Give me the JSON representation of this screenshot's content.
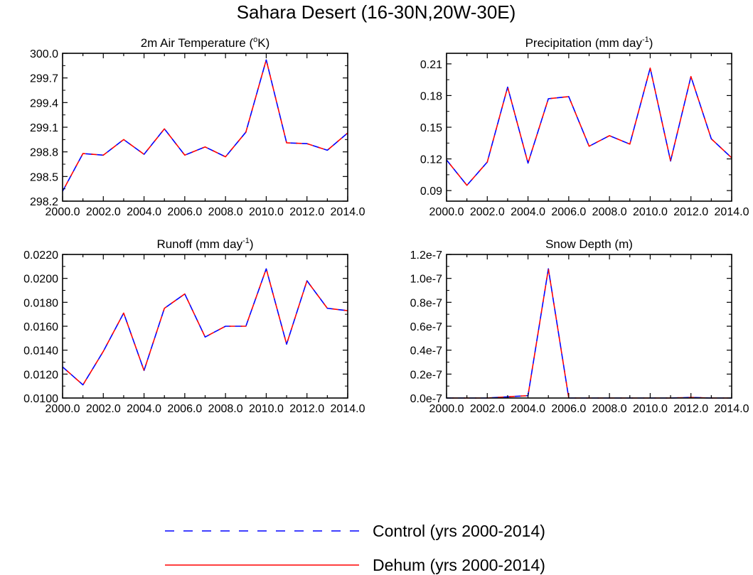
{
  "figure_title": "Sahara Desert (16-30N,20W-30E)",
  "colors": {
    "control": "#0000ff",
    "dehum": "#ff0000",
    "axis": "#000000"
  },
  "legend": [
    {
      "label": "Control (yrs 2000-2014)",
      "style": "dashed",
      "color_key": "control"
    },
    {
      "label": "Dehum (yrs 2000-2014)",
      "style": "solid",
      "color_key": "dehum"
    }
  ],
  "chart_data": [
    {
      "type": "line",
      "title": "2m Air Temperature (",
      "title_sup": "o",
      "title_after": "K)",
      "x": [
        2000,
        2001,
        2002,
        2003,
        2004,
        2005,
        2006,
        2007,
        2008,
        2009,
        2010,
        2011,
        2012,
        2013,
        2014
      ],
      "xlim": [
        2000,
        2014
      ],
      "xticks": [
        2000,
        2002,
        2004,
        2006,
        2008,
        2010,
        2012,
        2014
      ],
      "xtick_labels": [
        "2000.0",
        "2002.0",
        "2004.0",
        "2006.0",
        "2008.0",
        "2010.0",
        "2012.0",
        "2014.0"
      ],
      "ylim": [
        298.2,
        300.0
      ],
      "yticks": [
        298.2,
        298.5,
        298.8,
        299.1,
        299.4,
        299.7,
        300.0
      ],
      "ytick_labels": [
        "298.2",
        "298.5",
        "298.8",
        "299.1",
        "299.4",
        "299.7",
        "300.0"
      ],
      "series": [
        {
          "name": "Control",
          "values": [
            298.32,
            298.78,
            298.76,
            298.95,
            298.77,
            299.08,
            298.76,
            298.86,
            298.74,
            299.04,
            299.92,
            298.91,
            298.9,
            298.82,
            299.03
          ]
        },
        {
          "name": "Dehum",
          "values": [
            298.32,
            298.78,
            298.76,
            298.95,
            298.77,
            299.08,
            298.76,
            298.86,
            298.74,
            299.04,
            299.92,
            298.91,
            298.9,
            298.82,
            299.03
          ]
        }
      ]
    },
    {
      "type": "line",
      "title": "Precipitation (mm day",
      "title_sup": "-1",
      "title_after": ")",
      "x": [
        2000,
        2001,
        2002,
        2003,
        2004,
        2005,
        2006,
        2007,
        2008,
        2009,
        2010,
        2011,
        2012,
        2013,
        2014
      ],
      "xlim": [
        2000,
        2014
      ],
      "xticks": [
        2000,
        2002,
        2004,
        2006,
        2008,
        2010,
        2012,
        2014
      ],
      "xtick_labels": [
        "2000.0",
        "2002.0",
        "2004.0",
        "2006.0",
        "2008.0",
        "2010.0",
        "2012.0",
        "2014.0"
      ],
      "ylim": [
        0.08,
        0.22
      ],
      "yticks": [
        0.09,
        0.12,
        0.15,
        0.18,
        0.21
      ],
      "ytick_labels": [
        "0.09",
        "0.12",
        "0.15",
        "0.18",
        "0.21"
      ],
      "series": [
        {
          "name": "Control",
          "values": [
            0.119,
            0.095,
            0.117,
            0.188,
            0.116,
            0.177,
            0.179,
            0.132,
            0.142,
            0.134,
            0.206,
            0.118,
            0.198,
            0.139,
            0.121
          ]
        },
        {
          "name": "Dehum",
          "values": [
            0.119,
            0.095,
            0.117,
            0.188,
            0.116,
            0.177,
            0.179,
            0.132,
            0.142,
            0.134,
            0.206,
            0.118,
            0.198,
            0.139,
            0.121
          ]
        }
      ]
    },
    {
      "type": "line",
      "title": "Runoff (mm day",
      "title_sup": "-1",
      "title_after": ")",
      "x": [
        2000,
        2001,
        2002,
        2003,
        2004,
        2005,
        2006,
        2007,
        2008,
        2009,
        2010,
        2011,
        2012,
        2013,
        2014
      ],
      "xlim": [
        2000,
        2014
      ],
      "xticks": [
        2000,
        2002,
        2004,
        2006,
        2008,
        2010,
        2012,
        2014
      ],
      "xtick_labels": [
        "2000.0",
        "2002.0",
        "2004.0",
        "2006.0",
        "2008.0",
        "2010.0",
        "2012.0",
        "2014.0"
      ],
      "ylim": [
        0.01,
        0.022
      ],
      "yticks": [
        0.01,
        0.012,
        0.014,
        0.016,
        0.018,
        0.02,
        0.022
      ],
      "ytick_labels": [
        "0.0100",
        "0.0120",
        "0.0140",
        "0.0160",
        "0.0180",
        "0.0200",
        "0.0220"
      ],
      "series": [
        {
          "name": "Control",
          "values": [
            0.0126,
            0.0111,
            0.0139,
            0.0171,
            0.0123,
            0.0175,
            0.0187,
            0.0151,
            0.016,
            0.016,
            0.0208,
            0.0145,
            0.0198,
            0.0175,
            0.0173
          ]
        },
        {
          "name": "Dehum",
          "values": [
            0.0126,
            0.0111,
            0.0139,
            0.0171,
            0.0123,
            0.0175,
            0.0187,
            0.0151,
            0.016,
            0.016,
            0.0208,
            0.0145,
            0.0198,
            0.0175,
            0.0173
          ]
        }
      ]
    },
    {
      "type": "line",
      "title": "Snow Depth (m)",
      "title_sup": "",
      "title_after": "",
      "x": [
        2000,
        2001,
        2002,
        2003,
        2004,
        2005,
        2006,
        2007,
        2008,
        2009,
        2010,
        2011,
        2012,
        2013,
        2014
      ],
      "xlim": [
        2000,
        2014
      ],
      "xticks": [
        2000,
        2002,
        2004,
        2006,
        2008,
        2010,
        2012,
        2014
      ],
      "xtick_labels": [
        "2000.0",
        "2002.0",
        "2004.0",
        "2006.0",
        "2008.0",
        "2010.0",
        "2012.0",
        "2014.0"
      ],
      "ylim": [
        0,
        1.2e-07
      ],
      "yticks": [
        0,
        2e-08,
        4e-08,
        6e-08,
        8e-08,
        1e-07,
        1.2e-07
      ],
      "ytick_labels": [
        "0.0e-7",
        "0.2e-7",
        "0.4e-7",
        "0.6e-7",
        "0.8e-7",
        "1.0e-7",
        "1.2e-7"
      ],
      "series": [
        {
          "name": "Control",
          "values": [
            0,
            0,
            0,
            1e-09,
            2e-09,
            1.08e-07,
            0,
            0,
            0,
            0,
            0,
            0,
            5e-10,
            0,
            0
          ]
        },
        {
          "name": "Dehum",
          "values": [
            0,
            0,
            0,
            1e-09,
            2e-09,
            1.08e-07,
            0,
            0,
            0,
            0,
            0,
            0,
            5e-10,
            0,
            0
          ]
        }
      ]
    }
  ]
}
